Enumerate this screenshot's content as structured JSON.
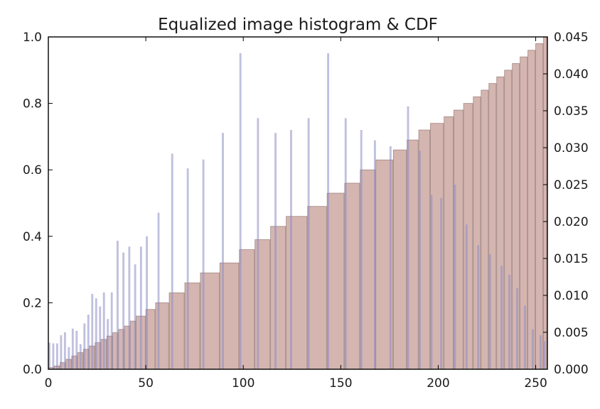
{
  "chart_data": {
    "type": "bar",
    "title": "Equalized image histogram & CDF",
    "xlabel": "",
    "ylabel": "",
    "xlim": [
      0,
      256
    ],
    "ylim": [
      0,
      1.0
    ],
    "y2lim": [
      0,
      0.045
    ],
    "grid": false,
    "x_ticks": [
      "0",
      "50",
      "100",
      "150",
      "200",
      "250"
    ],
    "y_ticks": [
      "0.0",
      "0.2",
      "0.4",
      "0.6",
      "0.8",
      "1.0"
    ],
    "y2_ticks": [
      "0.000",
      "0.005",
      "0.010",
      "0.015",
      "0.020",
      "0.025",
      "0.030",
      "0.035",
      "0.040",
      "0.045"
    ],
    "colors": {
      "cdf": "#b07870",
      "histogram": "#8c8cc4",
      "overlap": "#6e5a86"
    },
    "series": [
      {
        "axis": "left",
        "x": [
          0,
          3,
          6,
          9,
          12,
          15,
          18,
          21,
          24,
          27,
          30,
          33,
          36,
          39,
          42,
          45,
          50,
          55,
          62,
          70,
          78,
          88,
          98,
          106,
          114,
          122,
          133,
          143,
          152,
          160,
          168,
          177,
          184,
          190,
          196,
          203,
          208,
          213,
          218,
          222,
          226,
          230,
          234,
          238,
          242,
          246,
          250,
          254
        ],
        "values": [
          0.005,
          0.01,
          0.02,
          0.03,
          0.04,
          0.05,
          0.06,
          0.07,
          0.08,
          0.09,
          0.1,
          0.11,
          0.12,
          0.13,
          0.145,
          0.16,
          0.18,
          0.2,
          0.23,
          0.26,
          0.29,
          0.32,
          0.36,
          0.39,
          0.43,
          0.46,
          0.49,
          0.53,
          0.56,
          0.6,
          0.63,
          0.66,
          0.69,
          0.72,
          0.74,
          0.76,
          0.78,
          0.8,
          0.82,
          0.84,
          0.86,
          0.88,
          0.9,
          0.92,
          0.94,
          0.96,
          0.98,
          1.0
        ]
      },
      {
        "axis": "right",
        "x": [
          0,
          2,
          4,
          6,
          8,
          10,
          12,
          14,
          16,
          18,
          20,
          22,
          24,
          26,
          28,
          30,
          32,
          35,
          38,
          41,
          44,
          47,
          50,
          56,
          63,
          71,
          79,
          89,
          98,
          107,
          116,
          124,
          133,
          143,
          152,
          160,
          167,
          175,
          184,
          190,
          196,
          201,
          208,
          214,
          220,
          226,
          232,
          236,
          240,
          244,
          248,
          252,
          254
        ],
        "values": [
          0.0036,
          0.0035,
          0.0035,
          0.0046,
          0.005,
          0.003,
          0.0055,
          0.0052,
          0.0034,
          0.0062,
          0.0074,
          0.0102,
          0.0096,
          0.0085,
          0.0104,
          0.0068,
          0.0104,
          0.0174,
          0.0158,
          0.0166,
          0.0142,
          0.0166,
          0.018,
          0.0212,
          0.0292,
          0.0272,
          0.0284,
          0.032,
          0.0428,
          0.034,
          0.032,
          0.0324,
          0.034,
          0.0428,
          0.034,
          0.0324,
          0.031,
          0.0302,
          0.0356,
          0.0296,
          0.0236,
          0.0232,
          0.025,
          0.0196,
          0.0168,
          0.0156,
          0.014,
          0.0128,
          0.011,
          0.0086,
          0.0054,
          0.0046,
          0.0038
        ]
      }
    ]
  }
}
